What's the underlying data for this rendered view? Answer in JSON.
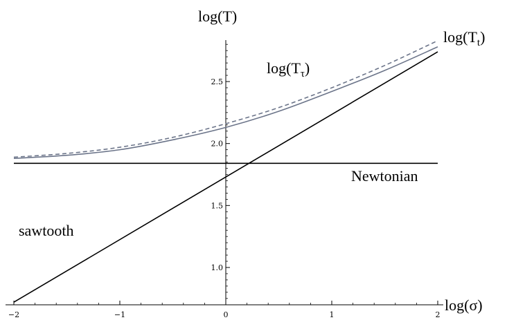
{
  "chart_data": {
    "type": "line",
    "xlabel": "log(σ)",
    "ylabel": "log(T)",
    "xlim": [
      -2,
      2
    ],
    "ylim": [
      0.7,
      2.85
    ],
    "x_ticks": [
      -2,
      -1,
      0,
      1,
      2
    ],
    "x_tick_labels": [
      "−2",
      "−1",
      "0",
      "1",
      "2"
    ],
    "y_ticks": [
      1.0,
      1.5,
      2.0,
      2.5
    ],
    "y_tick_labels": [
      "1.0",
      "1.5",
      "2.0",
      "2.5"
    ],
    "grid": false,
    "series": [
      {
        "name": "log(T_t)",
        "label_main": "log(T",
        "label_sub": "t",
        "label_close": ")",
        "color": "#6b7489",
        "dash": "6,4",
        "x": [
          -2.0,
          -1.5,
          -1.0,
          -0.5,
          0.0,
          0.5,
          1.0,
          1.5,
          2.0
        ],
        "y": [
          1.89,
          1.92,
          1.97,
          2.05,
          2.16,
          2.29,
          2.45,
          2.63,
          2.83
        ]
      },
      {
        "name": "log(T_τ)",
        "label_main": "log(T",
        "label_sub": "τ",
        "label_close": ")",
        "color": "#6b7489",
        "dash": "",
        "x": [
          -2.0,
          -1.5,
          -1.0,
          -0.5,
          0.0,
          0.5,
          1.0,
          1.5,
          2.0
        ],
        "y": [
          1.88,
          1.905,
          1.95,
          2.03,
          2.13,
          2.26,
          2.42,
          2.59,
          2.78
        ]
      },
      {
        "name": "Newtonian",
        "color": "#000000",
        "dash": "",
        "x": [
          -2.0,
          2.0
        ],
        "y": [
          1.84,
          1.84
        ]
      },
      {
        "name": "sawtooth",
        "color": "#000000",
        "dash": "",
        "x": [
          -2.0,
          2.0
        ],
        "y": [
          0.72,
          2.74
        ]
      }
    ]
  }
}
